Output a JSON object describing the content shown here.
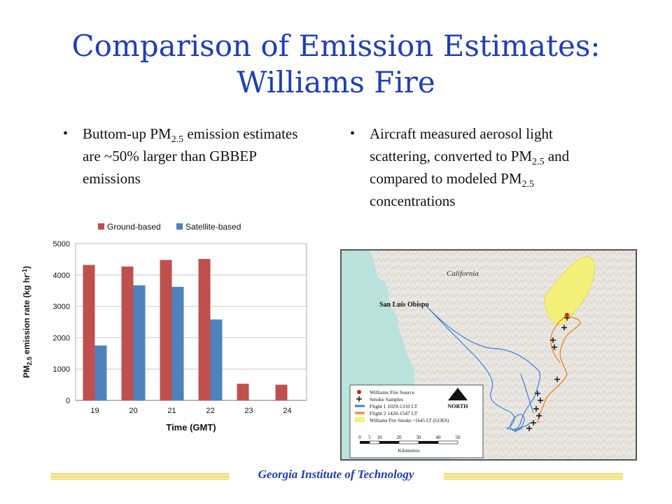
{
  "slide": {
    "title_line1": "Comparison of Emission Estimates:",
    "title_line2": "Williams Fire",
    "bullet_left": {
      "pre": "Buttom-up PM",
      "sub": "2.5",
      "post": " emission estimates are ~50% larger than GBBEP emissions"
    },
    "bullet_right": {
      "part1": "Aircraft measured aerosol light scattering, converted to PM",
      "sub1": "2.5",
      "part2": " and compared to modeled PM",
      "sub2": "2.5",
      "part3": " concentrations"
    },
    "bullet_glyph": "•",
    "footer": "Georgia Institute of Technology"
  },
  "chart_data": {
    "type": "bar",
    "categories": [
      "19",
      "20",
      "21",
      "22",
      "23",
      "24"
    ],
    "series": [
      {
        "name": "Ground-based",
        "color": "#c0504d",
        "values": [
          4320,
          4270,
          4480,
          4510,
          530,
          500
        ]
      },
      {
        "name": "Satellite-based",
        "color": "#4f81bd",
        "values": [
          1750,
          3670,
          3620,
          2580,
          null,
          null
        ]
      }
    ],
    "ylabel_pre": "PM",
    "ylabel_sub": "2.5",
    "ylabel_post": " emission rate (kg hr",
    "ylabel_sup": "-1",
    "ylabel_end": ")",
    "xlabel": "Time (GMT)",
    "ylim": [
      0,
      5000
    ],
    "yticks": [
      0,
      1000,
      2000,
      3000,
      4000,
      5000
    ],
    "grid": true,
    "legend": "top"
  },
  "map": {
    "state_label": "California",
    "city_label": "San Luis Obispo",
    "legend": {
      "items": [
        "Williams Fire Source",
        "Smoke Samples",
        "Flight 1 1029-1310 LT",
        "Flight 2 1420-1547 LT",
        "Williams Fire Smoke ~1645 LT (GOES)"
      ],
      "north": "NORTH",
      "scale_ticks": [
        "0",
        "5",
        "10",
        "20",
        "30",
        "40",
        "50"
      ],
      "scale_unit": "Kilometers"
    },
    "colors": {
      "flight1": "#3a7fd5",
      "flight2": "#e8882a",
      "smoke": "#f5f07a",
      "source": "#d42020",
      "ocean": "#b9e3dc"
    }
  }
}
